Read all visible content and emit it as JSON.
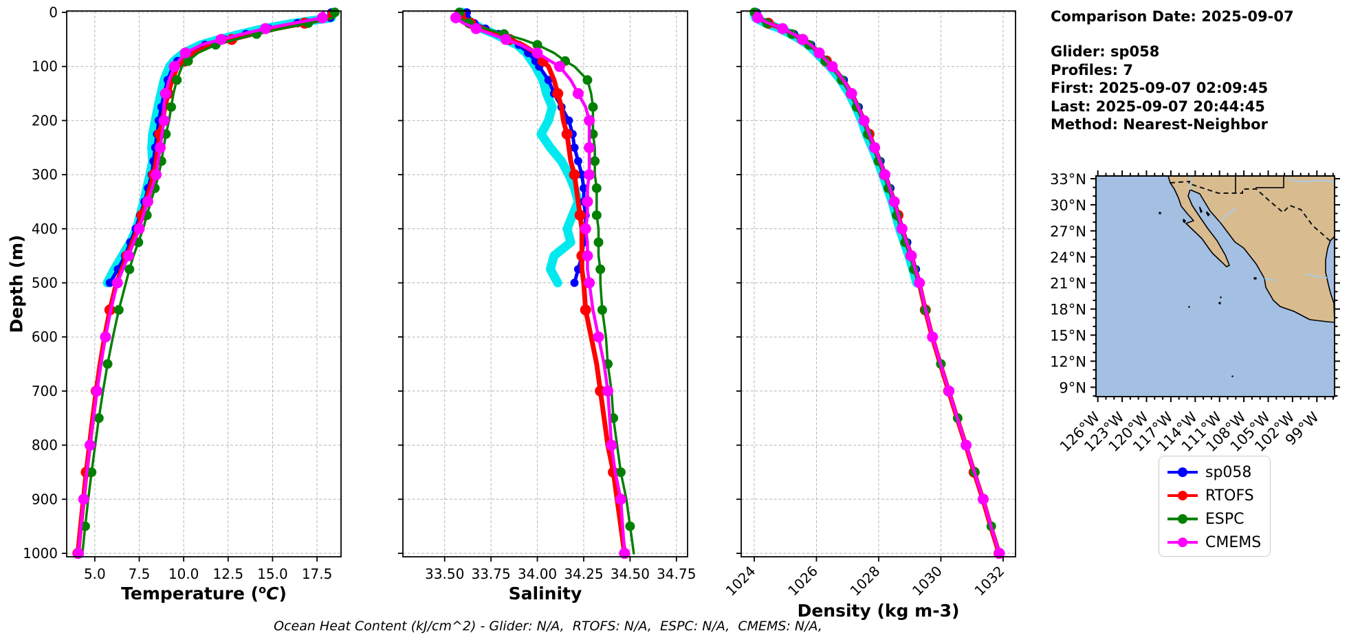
{
  "info_panel": {
    "comparison_date": "Comparison Date: 2025-09-07",
    "glider": "Glider: sp058",
    "profiles": "Profiles: 7",
    "first": "First: 2025-09-07 02:09:45",
    "last": "Last: 2025-09-07 20:44:45",
    "method": "Method: Nearest-Neighbor"
  },
  "footer": {
    "ohc_text": "Ocean Heat Content (kJ/cm^2) - Glider: N/A,  RTOFS: N/A,  ESPC: N/A,  CMEMS: N/A,"
  },
  "legend": {
    "items": [
      {
        "label": "sp058",
        "color": "#0000ff"
      },
      {
        "label": "RTOFS",
        "color": "#ff0000"
      },
      {
        "label": "ESPC",
        "color": "#008000"
      },
      {
        "label": "CMEMS",
        "color": "#ff00ff"
      }
    ]
  },
  "map": {
    "lat_labels": [
      "33°N",
      "30°N",
      "27°N",
      "24°N",
      "21°N",
      "18°N",
      "15°N",
      "12°N",
      "9°N"
    ],
    "lon_labels": [
      "126°W",
      "123°W",
      "120°W",
      "117°W",
      "114°W",
      "111°W",
      "108°W",
      "105°W",
      "102°W",
      "99°W"
    ],
    "colors": {
      "ocean": "#a3bfe2",
      "land": "#d8bc90",
      "coast": "#000000",
      "river": "#a9cbe8"
    }
  },
  "chart_data": {
    "type": "line",
    "ylabel": "Depth (m)",
    "ylim": [
      0,
      1000
    ],
    "yticks": [
      0,
      100,
      200,
      300,
      400,
      500,
      600,
      700,
      800,
      900,
      1000
    ],
    "depths": [
      0,
      10,
      20,
      30,
      40,
      50,
      60,
      75,
      90,
      100,
      125,
      150,
      175,
      200,
      225,
      250,
      275,
      300,
      325,
      350,
      375,
      400,
      425,
      450,
      475,
      500,
      550,
      600,
      650,
      700,
      750,
      800,
      850,
      900,
      950,
      1000
    ],
    "panels": [
      {
        "key": "temperature",
        "xlabel_pre": "Temperature (",
        "xlabel_sup": "o",
        "xlabel_it": "C",
        "xlabel_post": ")",
        "xlim": [
          3.42,
          18.85
        ],
        "xticks": [
          5.0,
          7.5,
          10.0,
          12.5,
          15.0,
          17.5
        ],
        "xtick_labels": [
          "5.0",
          "7.5",
          "10.0",
          "12.5",
          "15.0",
          "17.5"
        ],
        "rotate_xticks": false,
        "series": [
          {
            "name": "glider-raw",
            "color": "#00e9ef",
            "lw": 13,
            "marker_r": 0,
            "marker_every": 0,
            "marker_offset": 0,
            "values": [
              18.4,
              18.3,
              16.2,
              14.5,
              13.2,
              12.0,
              10.95,
              10.0,
              9.45,
              9.2,
              8.9,
              8.72,
              8.55,
              8.4,
              8.25,
              8.2,
              8.25,
              8.1,
              7.92,
              7.75,
              7.55,
              7.35,
              7.0,
              6.55,
              6.1,
              5.7
            ]
          },
          {
            "name": "sp058",
            "color": "#0000ff",
            "lw": 5,
            "marker_r": 6,
            "marker_every": 1,
            "marker_offset": 0,
            "values": [
              18.3,
              18.25,
              16.4,
              14.8,
              13.5,
              12.3,
              11.2,
              10.2,
              9.65,
              9.4,
              9.1,
              8.9,
              8.75,
              8.6,
              8.5,
              8.4,
              8.3,
              8.2,
              8.0,
              7.8,
              7.55,
              7.3,
              7.0,
              6.7,
              6.3,
              5.85
            ]
          },
          {
            "name": "RTOFS",
            "color": "#ff0000",
            "lw": 7,
            "marker_r": 8,
            "marker_every": 3,
            "marker_offset": 2,
            "values": [
              18.25,
              18.2,
              16.8,
              15.2,
              13.9,
              12.7,
              11.6,
              10.6,
              10.05,
              9.65,
              9.35,
              9.12,
              8.95,
              8.8,
              8.65,
              8.55,
              8.45,
              8.32,
              8.1,
              7.88,
              7.65,
              7.42,
              7.12,
              6.82,
              6.52,
              6.22,
              5.85,
              5.55,
              5.3,
              5.08,
              4.88,
              4.7,
              4.52,
              4.36,
              4.2,
              4.05
            ]
          },
          {
            "name": "ESPC",
            "color": "#008000",
            "lw": 3.5,
            "marker_r": 7,
            "marker_every": 2,
            "marker_offset": 0,
            "values": [
              18.5,
              18.45,
              17.0,
              15.5,
              14.1,
              12.9,
              11.8,
              10.8,
              10.25,
              9.9,
              9.62,
              9.42,
              9.3,
              9.18,
              9.0,
              8.87,
              8.75,
              8.6,
              8.38,
              8.15,
              7.93,
              7.72,
              7.45,
              7.18,
              6.95,
              6.75,
              6.35,
              6.02,
              5.72,
              5.46,
              5.23,
              5.02,
              4.82,
              4.63,
              4.46,
              4.3
            ]
          },
          {
            "name": "CMEMS",
            "color": "#ff00ff",
            "lw": 4.5,
            "marker_r": 8,
            "marker_every": 2,
            "marker_offset": 1,
            "values": [
              17.85,
              17.8,
              16.2,
              14.6,
              13.3,
              12.1,
              11.0,
              10.1,
              9.72,
              9.48,
              9.18,
              8.98,
              8.88,
              8.9,
              8.78,
              8.68,
              8.56,
              8.45,
              8.22,
              7.98,
              7.73,
              7.5,
              7.2,
              6.9,
              6.57,
              6.27,
              5.9,
              5.6,
              5.34,
              5.12,
              4.92,
              4.73,
              4.55,
              4.38,
              4.22,
              4.08
            ]
          }
        ]
      },
      {
        "key": "salinity",
        "xlabel_pre": "Salinity",
        "xlabel_sup": "",
        "xlabel_it": "",
        "xlabel_post": "",
        "xlim": [
          33.275,
          34.81
        ],
        "xticks": [
          33.5,
          33.75,
          34.0,
          34.25,
          34.5,
          34.75
        ],
        "xtick_labels": [
          "33.50",
          "33.75",
          "34.00",
          "34.25",
          "34.50",
          "34.75"
        ],
        "rotate_xticks": false,
        "series": [
          {
            "name": "glider-raw",
            "color": "#00e9ef",
            "lw": 13,
            "marker_r": 0,
            "marker_every": 0,
            "marker_offset": 0,
            "values": [
              33.6,
              33.61,
              33.65,
              33.7,
              33.77,
              33.83,
              33.89,
              33.94,
              33.97,
              33.99,
              34.03,
              34.05,
              34.08,
              34.06,
              34.02,
              34.07,
              34.13,
              34.17,
              34.2,
              34.22,
              34.19,
              34.16,
              34.18,
              34.09,
              34.07,
              34.11
            ]
          },
          {
            "name": "sp058",
            "color": "#0000ff",
            "lw": 5,
            "marker_r": 6,
            "marker_every": 1,
            "marker_offset": 0,
            "values": [
              33.62,
              33.62,
              33.66,
              33.72,
              33.79,
              33.85,
              33.9,
              33.95,
              33.99,
              34.01,
              34.06,
              34.09,
              34.13,
              34.17,
              34.19,
              34.2,
              34.22,
              34.24,
              34.25,
              34.25,
              34.26,
              34.26,
              34.25,
              34.24,
              34.22,
              34.2
            ]
          },
          {
            "name": "RTOFS",
            "color": "#ff0000",
            "lw": 7,
            "marker_r": 8,
            "marker_every": 3,
            "marker_offset": 2,
            "values": [
              33.6,
              33.6,
              33.64,
              33.71,
              33.78,
              33.85,
              33.92,
              33.99,
              34.03,
              34.06,
              34.09,
              34.11,
              34.13,
              34.14,
              34.16,
              34.17,
              34.18,
              34.2,
              34.21,
              34.22,
              34.23,
              34.24,
              34.24,
              34.24,
              34.24,
              34.25,
              34.26,
              34.29,
              34.32,
              34.34,
              34.36,
              34.38,
              34.41,
              34.43,
              34.45,
              34.47
            ]
          },
          {
            "name": "ESPC",
            "color": "#008000",
            "lw": 3.5,
            "marker_r": 7,
            "marker_every": 2,
            "marker_offset": 0,
            "values": [
              33.58,
              33.58,
              33.63,
              33.72,
              33.82,
              33.92,
              34.0,
              34.09,
              34.15,
              34.2,
              34.27,
              34.29,
              34.3,
              34.3,
              34.3,
              34.31,
              34.31,
              34.31,
              34.32,
              34.32,
              34.32,
              34.33,
              34.33,
              34.33,
              34.34,
              34.34,
              34.35,
              34.37,
              34.38,
              34.4,
              34.41,
              34.43,
              34.45,
              34.48,
              34.5,
              34.52
            ]
          },
          {
            "name": "CMEMS",
            "color": "#ff00ff",
            "lw": 4.5,
            "marker_r": 8,
            "marker_every": 2,
            "marker_offset": 1,
            "values": [
              33.56,
              33.56,
              33.6,
              33.67,
              33.75,
              33.83,
              33.91,
              34.0,
              34.07,
              34.12,
              34.18,
              34.22,
              34.26,
              34.28,
              34.28,
              34.28,
              34.28,
              34.28,
              34.27,
              34.27,
              34.27,
              34.26,
              34.27,
              34.27,
              34.27,
              34.28,
              34.3,
              34.33,
              34.36,
              34.38,
              34.39,
              34.4,
              34.42,
              34.45,
              34.46,
              34.47
            ]
          }
        ]
      },
      {
        "key": "density",
        "xlabel_pre": "Density (kg m-3)",
        "xlabel_sup": "",
        "xlabel_it": "",
        "xlabel_post": "",
        "xlim": [
          1023.58,
          1032.4
        ],
        "xticks": [
          1024,
          1026,
          1028,
          1030,
          1032
        ],
        "xtick_labels": [
          "1024",
          "1026",
          "1028",
          "1030",
          "1032"
        ],
        "rotate_xticks": true,
        "series": [
          {
            "name": "glider-raw",
            "color": "#00e9ef",
            "lw": 13,
            "marker_r": 0,
            "marker_every": 0,
            "marker_offset": 0,
            "values": [
              1023.99,
              1024.04,
              1024.36,
              1024.82,
              1025.17,
              1025.48,
              1025.73,
              1026.0,
              1026.25,
              1026.43,
              1026.78,
              1027.05,
              1027.27,
              1027.45,
              1027.6,
              1027.79,
              1027.97,
              1028.13,
              1028.28,
              1028.43,
              1028.55,
              1028.67,
              1028.82,
              1028.97,
              1029.1,
              1029.22
            ]
          },
          {
            "name": "sp058",
            "color": "#0000ff",
            "lw": 5,
            "marker_r": 6,
            "marker_every": 1,
            "marker_offset": 0,
            "values": [
              1024.08,
              1024.13,
              1024.48,
              1024.93,
              1025.28,
              1025.58,
              1025.83,
              1026.11,
              1026.35,
              1026.53,
              1026.88,
              1027.15,
              1027.36,
              1027.55,
              1027.72,
              1027.89,
              1028.06,
              1028.22,
              1028.38,
              1028.52,
              1028.65,
              1028.77,
              1028.92,
              1029.07,
              1029.2,
              1029.33
            ]
          },
          {
            "name": "RTOFS",
            "color": "#ff0000",
            "lw": 7,
            "marker_r": 8,
            "marker_every": 3,
            "marker_offset": 2,
            "values": [
              1024.05,
              1024.1,
              1024.45,
              1024.9,
              1025.25,
              1025.55,
              1025.8,
              1026.08,
              1026.32,
              1026.5,
              1026.85,
              1027.12,
              1027.33,
              1027.52,
              1027.69,
              1027.86,
              1028.03,
              1028.19,
              1028.35,
              1028.49,
              1028.62,
              1028.74,
              1028.89,
              1029.04,
              1029.17,
              1029.3,
              1029.5,
              1029.72,
              1029.98,
              1030.25,
              1030.52,
              1030.8,
              1031.07,
              1031.35,
              1031.6,
              1031.87
            ]
          },
          {
            "name": "ESPC",
            "color": "#008000",
            "lw": 3.5,
            "marker_r": 7,
            "marker_every": 2,
            "marker_offset": 0,
            "values": [
              1024.01,
              1024.06,
              1024.41,
              1024.86,
              1025.21,
              1025.51,
              1025.76,
              1026.04,
              1026.28,
              1026.46,
              1026.81,
              1027.08,
              1027.29,
              1027.48,
              1027.65,
              1027.82,
              1027.99,
              1028.15,
              1028.31,
              1028.45,
              1028.58,
              1028.7,
              1028.85,
              1029.0,
              1029.13,
              1029.28,
              1029.5,
              1029.74,
              1030.0,
              1030.27,
              1030.54,
              1030.82,
              1031.09,
              1031.37,
              1031.62,
              1031.9
            ]
          },
          {
            "name": "CMEMS",
            "color": "#ff00ff",
            "lw": 4.5,
            "marker_r": 8,
            "marker_every": 2,
            "marker_offset": 1,
            "values": [
              1024.06,
              1024.11,
              1024.46,
              1024.91,
              1025.26,
              1025.56,
              1025.81,
              1026.09,
              1026.33,
              1026.51,
              1026.86,
              1027.13,
              1027.34,
              1027.53,
              1027.7,
              1027.87,
              1028.04,
              1028.2,
              1028.36,
              1028.5,
              1028.63,
              1028.75,
              1028.9,
              1029.05,
              1029.18,
              1029.31,
              1029.51,
              1029.73,
              1029.99,
              1030.26,
              1030.53,
              1030.81,
              1031.08,
              1031.36,
              1031.61,
              1031.88
            ]
          }
        ]
      }
    ]
  }
}
